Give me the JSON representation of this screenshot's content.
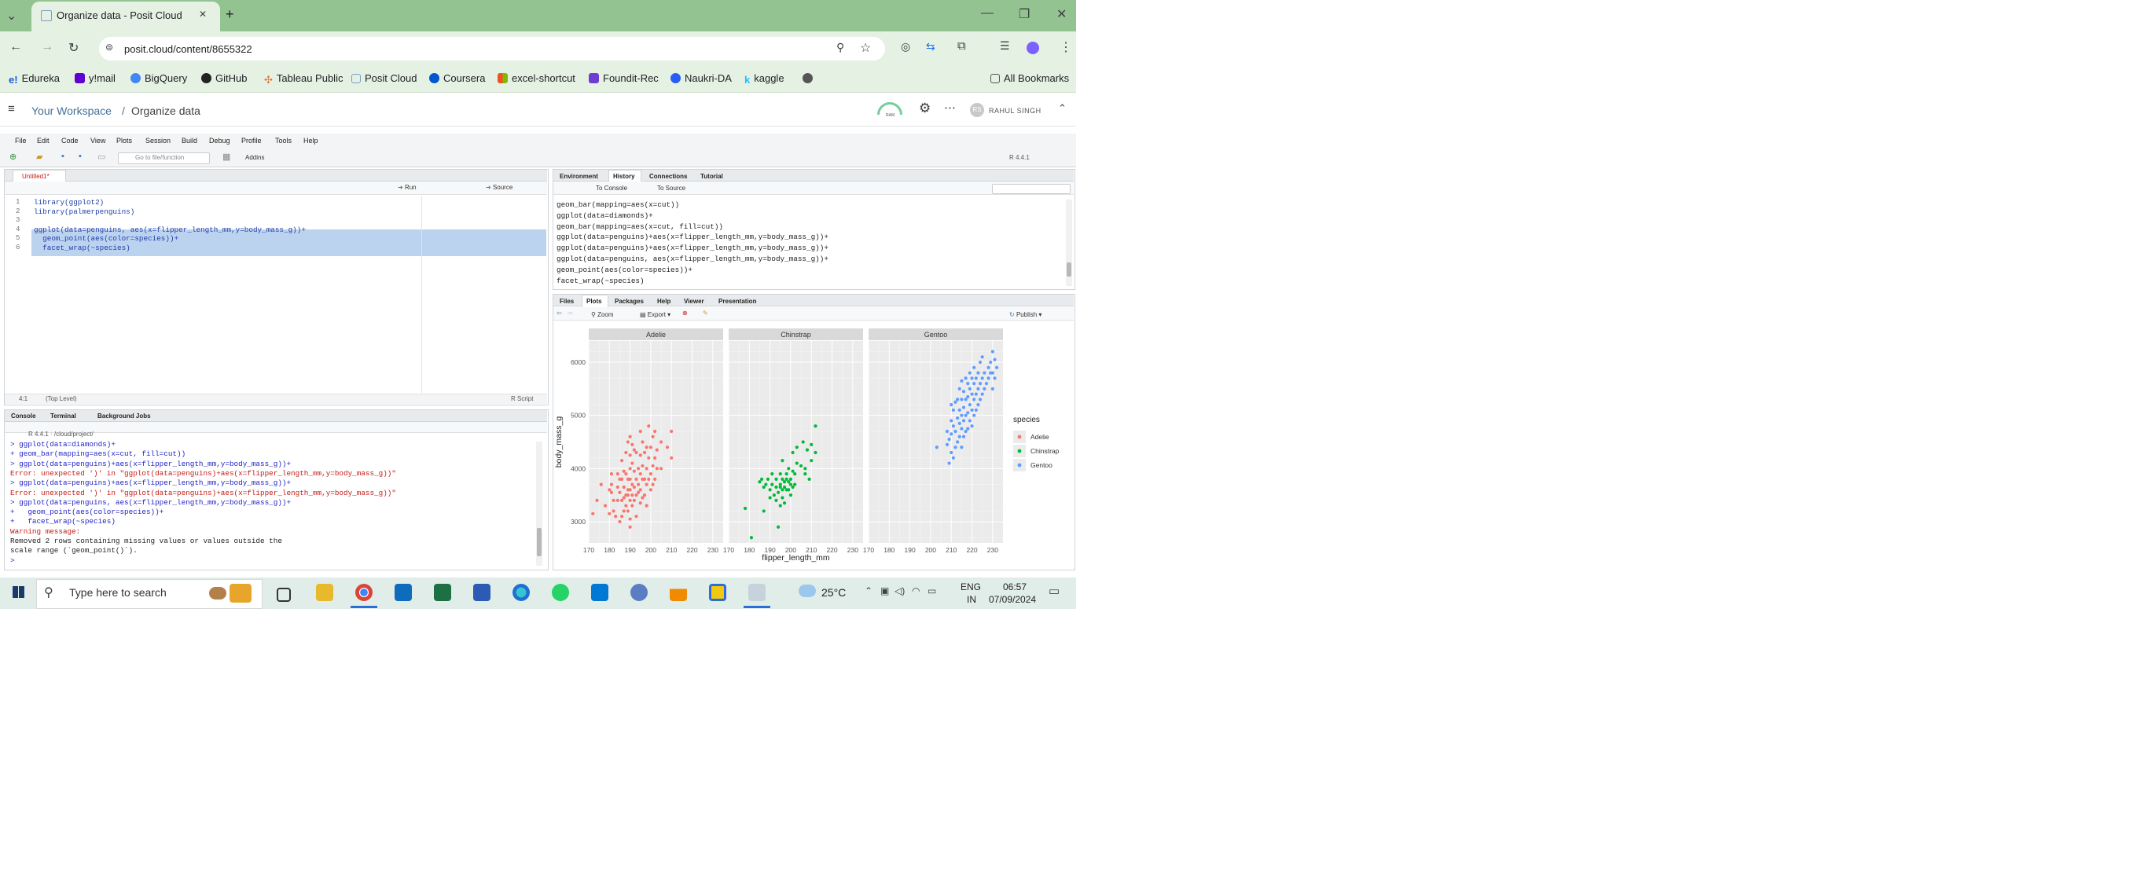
{
  "browser": {
    "tab_title": "Organize data - Posit Cloud",
    "tab_close": "✕",
    "new_tab": "+",
    "url": "posit.cloud/content/8655322",
    "bookmarks": [
      "Edureka",
      "y!mail",
      "BigQuery",
      "GitHub",
      "Tableau Public",
      "Posit Cloud",
      "Coursera",
      "excel-shortcut",
      "Foundit-Rec",
      "Naukri-DA",
      "kaggle"
    ],
    "bookmark_icon_labels": {
      "edureka": "e!",
      "kaggle": "k"
    },
    "all_bookmarks": "All Bookmarks",
    "colors": {
      "chrome_green": "#94c392",
      "chrome_light": "#e5f1e3"
    }
  },
  "posit": {
    "workspace_link": "Your Workspace",
    "separator": "/",
    "project": "Organize data",
    "user": "RAHUL SINGH",
    "avatar_initials": "RS",
    "gauge_label": "RAM"
  },
  "rstudio": {
    "menus": [
      "File",
      "Edit",
      "Code",
      "View",
      "Plots",
      "Session",
      "Build",
      "Debug",
      "Profile",
      "Tools",
      "Help"
    ],
    "toolbar": {
      "goto_placeholder": "Go to file/function",
      "addins": "Addins",
      "version": "R 4.4.1"
    },
    "editor": {
      "tab": "Untitled1*",
      "run": "Run",
      "source": "Source",
      "line_numbers": [
        "1",
        "2",
        "3",
        "4",
        "5",
        "6"
      ],
      "lines": [
        "library(ggplot2)",
        "library(palmerpenguins)",
        "",
        "ggplot(data=penguins, aes(x=flipper_length_mm,y=body_mass_g))+",
        "  geom_point(aes(color=species))+",
        "  facet_wrap(~species)"
      ],
      "status_pos": "4:1",
      "status_scope": "(Top Level)",
      "status_type": "R Script"
    },
    "history": {
      "tabs": [
        "Environment",
        "History",
        "Connections",
        "Tutorial"
      ],
      "to_console": "To Console",
      "to_source": "To Source",
      "lines": [
        "geom_bar(mapping=aes(x=cut))",
        "ggplot(data=diamonds)+",
        "geom_bar(mapping=aes(x=cut, fill=cut))",
        "ggplot(data=penguins)+aes(x=flipper_length_mm,y=body_mass_g))+",
        "ggplot(data=penguins)+aes(x=flipper_length_mm,y=body_mass_g))+",
        "ggplot(data=penguins, aes(x=flipper_length_mm,y=body_mass_g))+",
        "geom_point(aes(color=species))+",
        "facet_wrap(~species)"
      ]
    },
    "console": {
      "tabs": [
        "Console",
        "Terminal",
        "Background Jobs"
      ],
      "path": "R 4.4.1 · /cloud/project/",
      "lines": [
        {
          "text": "> ggplot(data=diamonds)+",
          "kind": "blue"
        },
        {
          "text": "+ geom_bar(mapping=aes(x=cut, fill=cut))",
          "kind": "blue"
        },
        {
          "text": "> ggplot(data=penguins)+aes(x=flipper_length_mm,y=body_mass_g))+",
          "kind": "blue"
        },
        {
          "text": "Error: unexpected ')' in \"ggplot(data=penguins)+aes(x=flipper_length_mm,y=body_mass_g))\"",
          "kind": "red"
        },
        {
          "text": "> ggplot(data=penguins)+aes(x=flipper_length_mm,y=body_mass_g))+",
          "kind": "blue"
        },
        {
          "text": "Error: unexpected ')' in \"ggplot(data=penguins)+aes(x=flipper_length_mm,y=body_mass_g))\"",
          "kind": "red"
        },
        {
          "text": "> ggplot(data=penguins, aes(x=flipper_length_mm,y=body_mass_g))+",
          "kind": "blue"
        },
        {
          "text": "+   geom_point(aes(color=species))+",
          "kind": "blue"
        },
        {
          "text": "+   facet_wrap(~species)",
          "kind": "blue"
        },
        {
          "text": "Warning message:",
          "kind": "red"
        },
        {
          "text": "Removed 2 rows containing missing values or values outside the",
          "kind": "blk"
        },
        {
          "text": "scale range (`geom_point()`).",
          "kind": "blk"
        },
        {
          "text": ">",
          "kind": "blue"
        }
      ]
    },
    "plots": {
      "tabs": [
        "Files",
        "Plots",
        "Packages",
        "Help",
        "Viewer",
        "Presentation"
      ],
      "zoom": "Zoom",
      "export": "Export",
      "publish": "Publish"
    }
  },
  "chart_data": {
    "type": "scatter",
    "facets": [
      "Adelie",
      "Chinstrap",
      "Gentoo"
    ],
    "xlabel": "flipper_length_mm",
    "ylabel": "body_mass_g",
    "xlim": [
      170,
      235
    ],
    "ylim": [
      2600,
      6400
    ],
    "xticks": [
      170,
      180,
      190,
      200,
      210,
      220,
      230
    ],
    "yticks": [
      3000,
      4000,
      5000,
      6000
    ],
    "legend_title": "species",
    "legend_position": "right",
    "grid": true,
    "series": [
      {
        "name": "Adelie",
        "color": "#f8766d",
        "points": [
          [
            172,
            3150
          ],
          [
            174,
            3400
          ],
          [
            176,
            3700
          ],
          [
            178,
            3300
          ],
          [
            180,
            3150
          ],
          [
            180,
            3600
          ],
          [
            181,
            3550
          ],
          [
            181,
            3700
          ],
          [
            181,
            3900
          ],
          [
            182,
            3200
          ],
          [
            182,
            3400
          ],
          [
            183,
            3100
          ],
          [
            184,
            3400
          ],
          [
            184,
            3650
          ],
          [
            184,
            3900
          ],
          [
            185,
            3000
          ],
          [
            185,
            3550
          ],
          [
            185,
            3800
          ],
          [
            186,
            3100
          ],
          [
            186,
            3400
          ],
          [
            186,
            3800
          ],
          [
            186,
            4150
          ],
          [
            187,
            3200
          ],
          [
            187,
            3450
          ],
          [
            187,
            3650
          ],
          [
            187,
            3950
          ],
          [
            188,
            3300
          ],
          [
            188,
            3500
          ],
          [
            188,
            3900
          ],
          [
            188,
            4300
          ],
          [
            189,
            3200
          ],
          [
            189,
            3500
          ],
          [
            189,
            3600
          ],
          [
            189,
            3800
          ],
          [
            189,
            4500
          ],
          [
            190,
            2900
          ],
          [
            190,
            3050
          ],
          [
            190,
            3400
          ],
          [
            190,
            3600
          ],
          [
            190,
            3800
          ],
          [
            190,
            4000
          ],
          [
            190,
            4250
          ],
          [
            190,
            4600
          ],
          [
            191,
            3300
          ],
          [
            191,
            3500
          ],
          [
            191,
            3700
          ],
          [
            191,
            4100
          ],
          [
            191,
            4450
          ],
          [
            192,
            3400
          ],
          [
            192,
            3650
          ],
          [
            192,
            3950
          ],
          [
            192,
            4350
          ],
          [
            193,
            3100
          ],
          [
            193,
            3500
          ],
          [
            193,
            3800
          ],
          [
            193,
            4300
          ],
          [
            194,
            3550
          ],
          [
            194,
            3700
          ],
          [
            194,
            4000
          ],
          [
            195,
            3350
          ],
          [
            195,
            3600
          ],
          [
            195,
            3900
          ],
          [
            195,
            4250
          ],
          [
            195,
            4700
          ],
          [
            196,
            3450
          ],
          [
            196,
            3800
          ],
          [
            196,
            4050
          ],
          [
            196,
            4500
          ],
          [
            197,
            3500
          ],
          [
            197,
            3800
          ],
          [
            197,
            4300
          ],
          [
            198,
            3300
          ],
          [
            198,
            3700
          ],
          [
            198,
            4000
          ],
          [
            198,
            4400
          ],
          [
            199,
            3800
          ],
          [
            199,
            4200
          ],
          [
            199,
            4800
          ],
          [
            200,
            3600
          ],
          [
            200,
            3900
          ],
          [
            200,
            4400
          ],
          [
            201,
            3700
          ],
          [
            201,
            4050
          ],
          [
            201,
            4600
          ],
          [
            202,
            3800
          ],
          [
            202,
            4200
          ],
          [
            202,
            4700
          ],
          [
            203,
            4000
          ],
          [
            203,
            4350
          ],
          [
            205,
            4000
          ],
          [
            205,
            4500
          ],
          [
            208,
            4400
          ],
          [
            210,
            4200
          ],
          [
            210,
            4700
          ]
        ]
      },
      {
        "name": "Chinstrap",
        "color": "#00ba38",
        "points": [
          [
            178,
            3250
          ],
          [
            181,
            2700
          ],
          [
            185,
            3750
          ],
          [
            186,
            3800
          ],
          [
            187,
            3650
          ],
          [
            187,
            3200
          ],
          [
            188,
            3700
          ],
          [
            189,
            3800
          ],
          [
            190,
            3450
          ],
          [
            190,
            3600
          ],
          [
            191,
            3700
          ],
          [
            191,
            3900
          ],
          [
            192,
            3500
          ],
          [
            193,
            3400
          ],
          [
            193,
            3650
          ],
          [
            193,
            3800
          ],
          [
            194,
            2900
          ],
          [
            194,
            3550
          ],
          [
            195,
            3300
          ],
          [
            195,
            3650
          ],
          [
            195,
            3700
          ],
          [
            195,
            3900
          ],
          [
            196,
            3450
          ],
          [
            196,
            3600
          ],
          [
            196,
            3800
          ],
          [
            196,
            4150
          ],
          [
            197,
            3350
          ],
          [
            197,
            3650
          ],
          [
            197,
            3750
          ],
          [
            198,
            3600
          ],
          [
            198,
            3800
          ],
          [
            198,
            3900
          ],
          [
            199,
            3600
          ],
          [
            199,
            3750
          ],
          [
            199,
            4000
          ],
          [
            200,
            3500
          ],
          [
            200,
            3700
          ],
          [
            200,
            3800
          ],
          [
            201,
            3650
          ],
          [
            201,
            3950
          ],
          [
            201,
            4300
          ],
          [
            202,
            3700
          ],
          [
            202,
            3900
          ],
          [
            203,
            4100
          ],
          [
            203,
            4400
          ],
          [
            205,
            4050
          ],
          [
            206,
            4500
          ],
          [
            207,
            3900
          ],
          [
            207,
            4000
          ],
          [
            208,
            4350
          ],
          [
            209,
            3800
          ],
          [
            210,
            4450
          ],
          [
            210,
            4150
          ],
          [
            212,
            4300
          ],
          [
            212,
            4800
          ]
        ]
      },
      {
        "name": "Gentoo",
        "color": "#619cff",
        "points": [
          [
            203,
            4400
          ],
          [
            208,
            4450
          ],
          [
            208,
            4700
          ],
          [
            209,
            4100
          ],
          [
            209,
            4550
          ],
          [
            210,
            4300
          ],
          [
            210,
            4650
          ],
          [
            210,
            4900
          ],
          [
            210,
            5200
          ],
          [
            211,
            4200
          ],
          [
            211,
            4800
          ],
          [
            211,
            5100
          ],
          [
            212,
            4400
          ],
          [
            212,
            4700
          ],
          [
            212,
            5250
          ],
          [
            213,
            4500
          ],
          [
            213,
            4950
          ],
          [
            213,
            5300
          ],
          [
            214,
            4600
          ],
          [
            214,
            4850
          ],
          [
            214,
            5100
          ],
          [
            214,
            5500
          ],
          [
            215,
            4400
          ],
          [
            215,
            4750
          ],
          [
            215,
            5000
          ],
          [
            215,
            5300
          ],
          [
            215,
            5650
          ],
          [
            216,
            4600
          ],
          [
            216,
            4900
          ],
          [
            216,
            5150
          ],
          [
            216,
            5450
          ],
          [
            217,
            4700
          ],
          [
            217,
            5000
          ],
          [
            217,
            5300
          ],
          [
            217,
            5700
          ],
          [
            218,
            4750
          ],
          [
            218,
            5050
          ],
          [
            218,
            5350
          ],
          [
            218,
            5600
          ],
          [
            219,
            4900
          ],
          [
            219,
            5200
          ],
          [
            219,
            5500
          ],
          [
            219,
            5800
          ],
          [
            220,
            4800
          ],
          [
            220,
            5100
          ],
          [
            220,
            5400
          ],
          [
            220,
            5700
          ],
          [
            221,
            5000
          ],
          [
            221,
            5300
          ],
          [
            221,
            5600
          ],
          [
            221,
            5900
          ],
          [
            222,
            5100
          ],
          [
            222,
            5400
          ],
          [
            222,
            5700
          ],
          [
            223,
            5200
          ],
          [
            223,
            5500
          ],
          [
            223,
            5800
          ],
          [
            224,
            5300
          ],
          [
            224,
            5600
          ],
          [
            224,
            6000
          ],
          [
            225,
            5400
          ],
          [
            225,
            5700
          ],
          [
            225,
            6100
          ],
          [
            226,
            5500
          ],
          [
            226,
            5800
          ],
          [
            227,
            5600
          ],
          [
            228,
            5700
          ],
          [
            228,
            5900
          ],
          [
            229,
            5800
          ],
          [
            229,
            6000
          ],
          [
            230,
            5500
          ],
          [
            230,
            5800
          ],
          [
            230,
            6200
          ],
          [
            231,
            5700
          ],
          [
            231,
            6050
          ],
          [
            232,
            5900
          ]
        ]
      }
    ]
  },
  "taskbar": {
    "search_placeholder": "Type here to search",
    "weather": "25°C",
    "lang1": "ENG",
    "lang2": "IN",
    "time": "06:57",
    "date": "07/09/2024"
  }
}
